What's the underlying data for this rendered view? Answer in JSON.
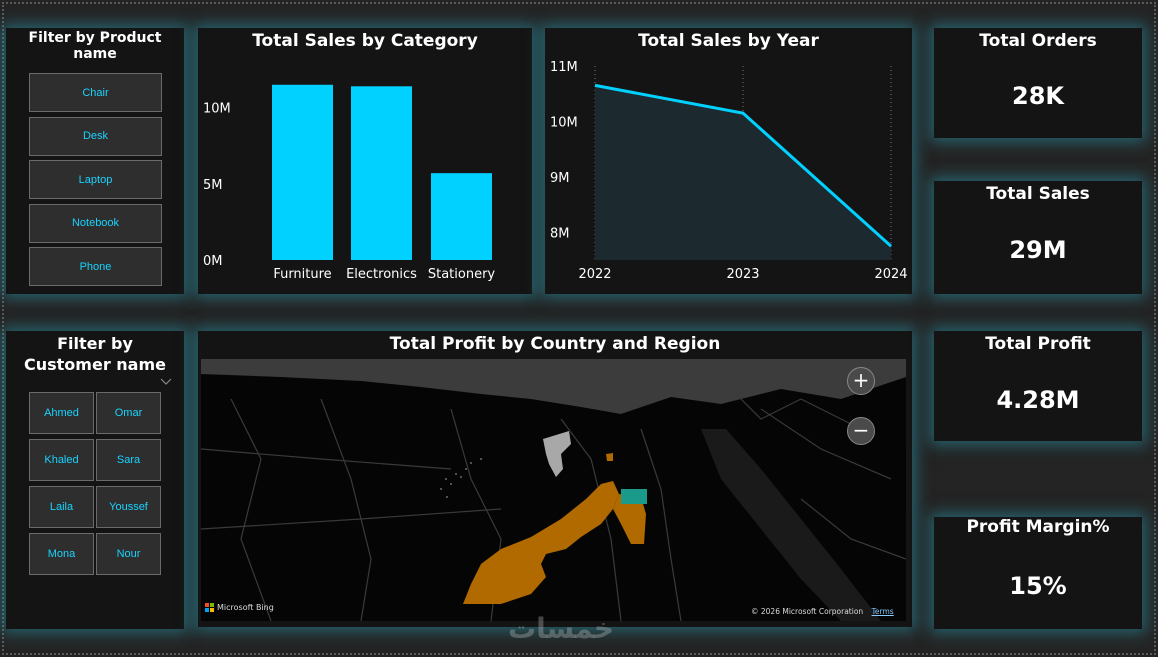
{
  "product_filter": {
    "title": "Filter by Product name",
    "items": [
      "Chair",
      "Desk",
      "Laptop",
      "Notebook",
      "Phone"
    ]
  },
  "customer_filter": {
    "title": "Filter by Customer name",
    "items": [
      "Ahmed",
      "Omar",
      "Khaled",
      "Sara",
      "Laila",
      "Youssef",
      "Mona",
      "Nour"
    ]
  },
  "category_chart": {
    "title": "Total Sales by Category"
  },
  "year_chart": {
    "title": "Total Sales by Year"
  },
  "map": {
    "title": "Total Profit by Country and Region",
    "brand": "Microsoft Bing",
    "copyright": "© 2026 Microsoft Corporation",
    "terms": "Terms",
    "zoom_in": "+",
    "zoom_out": "−"
  },
  "kpis": {
    "orders": {
      "label": "Total Orders",
      "value": "28K"
    },
    "sales": {
      "label": "Total Sales",
      "value": "29M"
    },
    "profit": {
      "label": "Total Profit",
      "value": "4.28M"
    },
    "margin": {
      "label": "Profit Margin%",
      "value": "15%"
    }
  },
  "watermark": "خمسات",
  "colors": {
    "accent": "#00d1ff",
    "region_fill": "#b06a00",
    "region_highlight": "#1a9a8a"
  },
  "chart_data": [
    {
      "type": "bar",
      "title": "Total Sales by Category",
      "categories": [
        "Furniture",
        "Electronics",
        "Stationery"
      ],
      "values": [
        11.5,
        11.4,
        5.7
      ],
      "unit": "M",
      "yticks": [
        "0M",
        "5M",
        "10M"
      ],
      "ylim": [
        0,
        12.6
      ],
      "grid": false
    },
    {
      "type": "area",
      "title": "Total Sales by Year",
      "x": [
        "2022",
        "2023",
        "2024"
      ],
      "values": [
        10.65,
        10.15,
        7.75
      ],
      "unit": "M",
      "yticks": [
        "8M",
        "9M",
        "10M",
        "11M"
      ],
      "ylim": [
        7.5,
        11
      ],
      "grid": true
    }
  ]
}
